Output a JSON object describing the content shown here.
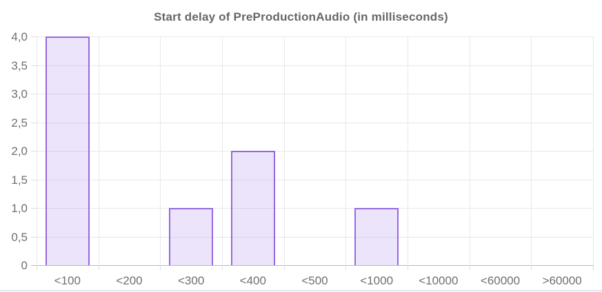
{
  "chart_data": {
    "type": "bar",
    "title": "Start delay of PreProductionAudio (in milliseconds)",
    "categories": [
      "<100",
      "<200",
      "<300",
      "<400",
      "<500",
      "<1000",
      "<10000",
      "<60000",
      ">60000"
    ],
    "values": [
      4,
      0,
      1,
      2,
      0,
      1,
      0,
      0,
      0
    ],
    "xlabel": "",
    "ylabel": "",
    "ylim": [
      0,
      4
    ],
    "y_tick_step": 0.5,
    "y_tick_labels": [
      "4,0",
      "3,5",
      "3,0",
      "2,5",
      "2,0",
      "1,5",
      "1,0",
      "0,5",
      "0"
    ],
    "decimal_separator": ",",
    "grid": true,
    "legend_visible": false,
    "colors": {
      "bar_border": "#9468e1",
      "bar_fill": "rgba(148,104,225,0.18)",
      "gridline": "#e8e8e8",
      "zero_line": "#b9b9b9",
      "tick_mark": "#dcdcdc",
      "tick_text": "#6f6f6f",
      "title_text": "#666666",
      "bottom_divider": "#dde8f2"
    }
  }
}
